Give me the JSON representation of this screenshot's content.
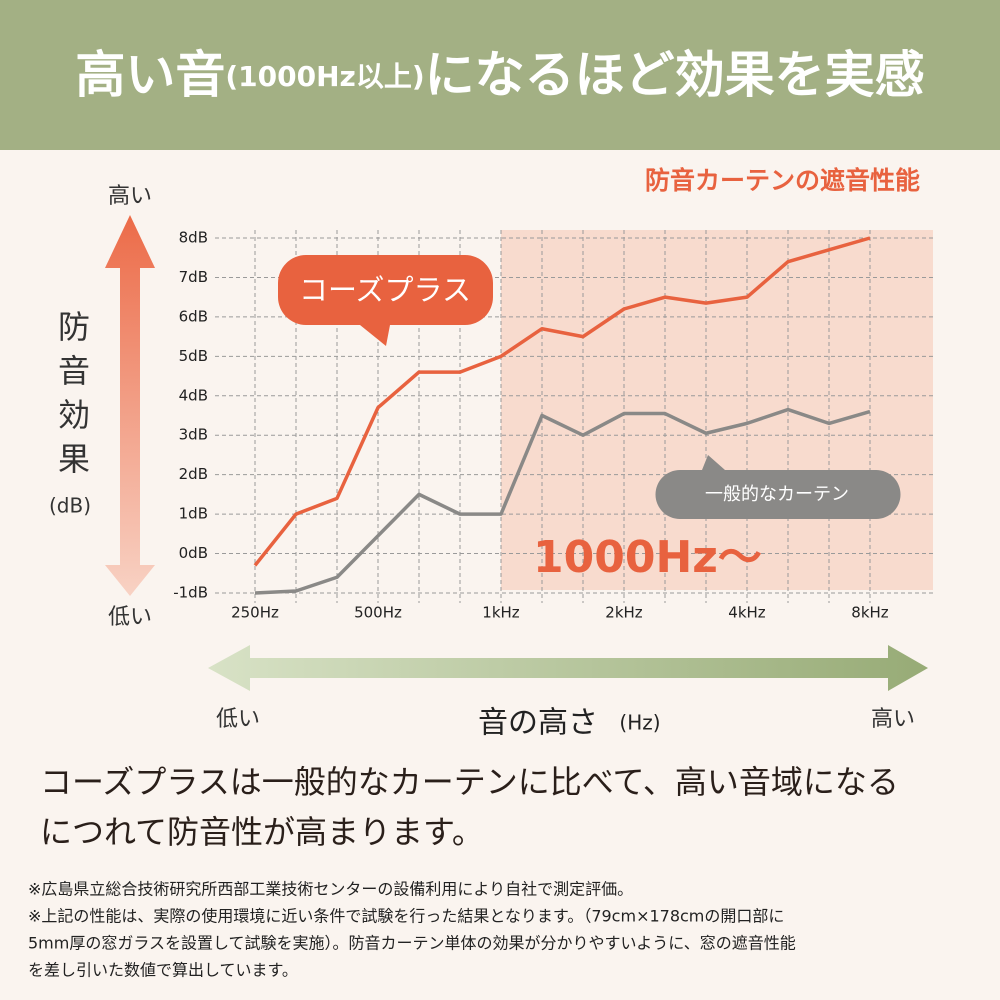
{
  "header": {
    "title_parts": [
      "高い音",
      "(1000Hz以上)",
      "になるほど効果を実感"
    ]
  },
  "chart_data": {
    "type": "line",
    "title": "防音カーテンの遮音性能",
    "categories": [
      "250Hz",
      null,
      null,
      "500Hz",
      null,
      null,
      "1kHz",
      null,
      null,
      "2kHz",
      null,
      null,
      "4kHz",
      null,
      null,
      "8kHz"
    ],
    "series": [
      {
        "name": "コーズプラス",
        "color": "#e8623f",
        "values": [
          -0.3,
          1.0,
          1.4,
          3.7,
          4.6,
          4.6,
          5.0,
          5.7,
          5.5,
          6.2,
          6.5,
          6.35,
          6.5,
          7.4,
          7.7,
          8.0
        ]
      },
      {
        "name": "一般的なカーテン",
        "color": "#8a8987",
        "values": [
          -1.0,
          -0.95,
          -0.6,
          0.45,
          1.5,
          1.0,
          1.0,
          3.5,
          3.0,
          3.55,
          3.55,
          3.05,
          3.3,
          3.65,
          3.3,
          3.6
        ]
      }
    ],
    "ylim": [
      -1,
      8
    ],
    "yticks": [
      {
        "value": 8,
        "label": "8dB"
      },
      {
        "value": 7,
        "label": "7dB"
      },
      {
        "value": 6,
        "label": "6dB"
      },
      {
        "value": 5,
        "label": "5dB"
      },
      {
        "value": 4,
        "label": "4dB"
      },
      {
        "value": 3,
        "label": "3dB"
      },
      {
        "value": 2,
        "label": "2dB"
      },
      {
        "value": 1,
        "label": "1dB"
      },
      {
        "value": 0,
        "label": "0dB"
      },
      {
        "value": -1,
        "label": "-1dB"
      }
    ],
    "grid": true,
    "highlight_from": 6,
    "highlight_label": "1000Hz〜",
    "y_label": "防音効果",
    "y_unit": "(dB)",
    "y_high": "高い",
    "y_low": "低い",
    "x_label": "音の高さ",
    "x_unit": "(Hz)",
    "x_low": "低い",
    "x_high": "高い"
  },
  "body": {
    "lines": [
      "コーズプラスは一般的なカーテンに比べて、高い音域になる",
      "につれて防音性が高まります。"
    ]
  },
  "notes": {
    "lines": [
      "※広島県立総合技術研究所西部工業技術センターの設備利用により自社で測定評価。",
      "※上記の性能は、実際の使用環境に近い条件で試験を行った結果となります。（79cm×178cmの開口部に",
      "5mm厚の窓ガラスを設置して試験を実施）。防音カーテン単体の効果が分かりやすいように、窓の遮音性能",
      "を差し引いた数値で算出しています。"
    ]
  }
}
